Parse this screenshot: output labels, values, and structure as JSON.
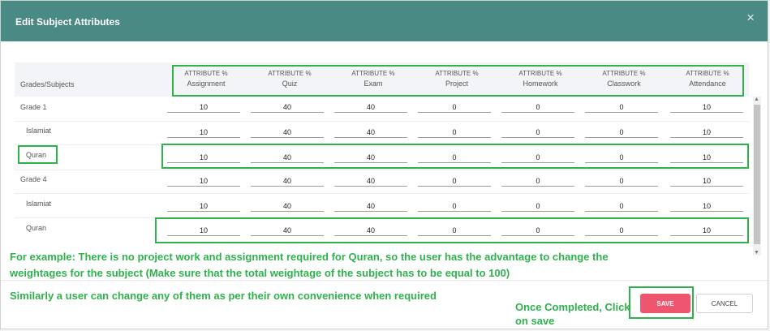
{
  "colors": {
    "header": "#4a8a84",
    "annotation": "#2fb24c",
    "save_button": "#f0556f"
  },
  "dialog": {
    "title": "Edit Subject Attributes",
    "close_icon": "×"
  },
  "table": {
    "row_header": "Grades/Subjects",
    "columns": [
      {
        "prefix": "ATTRIBUTE %",
        "name": "Assignment"
      },
      {
        "prefix": "ATTRIBUTE %",
        "name": "Quiz"
      },
      {
        "prefix": "ATTRIBUTE %",
        "name": "Exam"
      },
      {
        "prefix": "ATTRIBUTE %",
        "name": "Project"
      },
      {
        "prefix": "ATTRIBUTE %",
        "name": "Homework"
      },
      {
        "prefix": "ATTRIBUTE %",
        "name": "Classwork"
      },
      {
        "prefix": "ATTRIBUTE %",
        "name": "Attendance"
      }
    ],
    "rows": [
      {
        "label": "Grade 1",
        "values": [
          "10",
          "40",
          "40",
          "0",
          "0",
          "0",
          "10"
        ]
      },
      {
        "label": "Islamiat",
        "values": [
          "10",
          "40",
          "40",
          "0",
          "0",
          "0",
          "10"
        ]
      },
      {
        "label": "Quran",
        "values": [
          "10",
          "40",
          "40",
          "0",
          "0",
          "0",
          "10"
        ]
      },
      {
        "label": "Grade 4",
        "values": [
          "10",
          "40",
          "40",
          "0",
          "0",
          "0",
          "10"
        ]
      },
      {
        "label": "Islamiat",
        "values": [
          "10",
          "40",
          "40",
          "0",
          "0",
          "0",
          "10"
        ]
      },
      {
        "label": "Quran",
        "values": [
          "10",
          "40",
          "40",
          "0",
          "0",
          "0",
          "10"
        ]
      }
    ]
  },
  "scrollbar": {
    "up_arrow": "▲",
    "down_arrow": "▼"
  },
  "annotations": {
    "example_line1": "For example: There is no project work and assignment required for Quran, so the user has the advantage to change the",
    "example_line2": "weightages for the subject (Make sure that the total weightage of the subject has to be equal to 100)",
    "similarly": "Similarly a user can change any of them as per their own convenience when required",
    "once_completed_line1": "Once Completed, Click",
    "once_completed_line2": "on save"
  },
  "footer": {
    "save_label": "SAVE",
    "cancel_label": "CANCEL"
  }
}
